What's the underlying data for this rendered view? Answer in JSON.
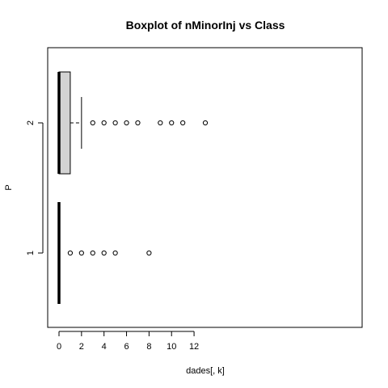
{
  "chart_data": {
    "type": "boxplot",
    "orientation": "horizontal",
    "title": "Boxplot of nMinorInj vs Class",
    "xlabel": "dades[, k]",
    "ylabel": "P",
    "xlim": [
      -0.5,
      13.5
    ],
    "xticks": [
      0,
      2,
      4,
      6,
      8,
      10,
      12
    ],
    "categories": [
      "1",
      "2"
    ],
    "boxes": [
      {
        "group": "1",
        "whisker_low": 0,
        "q1": 0,
        "median": 0,
        "q3": 0,
        "whisker_high": 0,
        "outliers": [
          1,
          2,
          3,
          4,
          5,
          8
        ]
      },
      {
        "group": "2",
        "whisker_low": 0,
        "q1": 0,
        "median": 0,
        "q3": 1,
        "whisker_high": 2,
        "outliers": [
          3,
          4,
          5,
          6,
          7,
          9,
          10,
          11,
          13
        ]
      }
    ],
    "box_fill": "#d3d3d3",
    "grid": false
  }
}
